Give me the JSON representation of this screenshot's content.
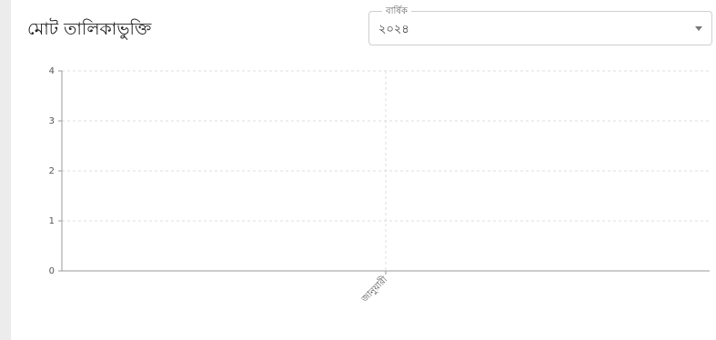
{
  "filter": {
    "label": "বার্ষিক",
    "value": "২০২৪"
  },
  "chart_data": {
    "type": "bar",
    "title": "মোট তালিকাভুক্তি",
    "categories": [
      "জানুয়ারী"
    ],
    "values": [
      0
    ],
    "color": "#4472c4",
    "ylim": [
      0,
      4
    ],
    "yticks": [
      0,
      1,
      2,
      3,
      4
    ],
    "grid": true
  }
}
